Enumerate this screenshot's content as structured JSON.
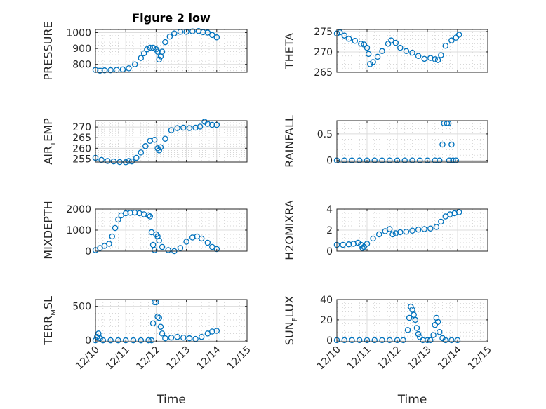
{
  "chart_data": [
    {
      "type": "scatter",
      "title": "Figure 2 low",
      "ylabel": "PRESSURE",
      "xlim": [
        0,
        5
      ],
      "ylim": [
        750,
        1020
      ],
      "yticks": [
        800,
        900,
        1000
      ],
      "x_tick_labels": [
        "12/10",
        "12/11",
        "12/12",
        "12/13",
        "12/14",
        "12/15"
      ],
      "grid": true,
      "show_x_tick_labels": false,
      "series": [
        {
          "color": "#0072BD",
          "points": [
            [
              0.0,
              765
            ],
            [
              0.15,
              760
            ],
            [
              0.3,
              762
            ],
            [
              0.5,
              763
            ],
            [
              0.7,
              765
            ],
            [
              0.9,
              768
            ],
            [
              1.1,
              775
            ],
            [
              1.3,
              800
            ],
            [
              1.5,
              840
            ],
            [
              1.6,
              870
            ],
            [
              1.7,
              895
            ],
            [
              1.8,
              905
            ],
            [
              1.9,
              905
            ],
            [
              2.0,
              895
            ],
            [
              2.05,
              880
            ],
            [
              2.1,
              830
            ],
            [
              2.15,
              850
            ],
            [
              2.2,
              880
            ],
            [
              2.3,
              940
            ],
            [
              2.45,
              975
            ],
            [
              2.6,
              995
            ],
            [
              2.8,
              1005
            ],
            [
              3.0,
              1005
            ],
            [
              3.2,
              1008
            ],
            [
              3.4,
              1010
            ],
            [
              3.55,
              1003
            ],
            [
              3.7,
              1000
            ],
            [
              3.85,
              985
            ],
            [
              4.0,
              970
            ]
          ]
        }
      ]
    },
    {
      "type": "scatter",
      "ylabel": "THETA",
      "xlim": [
        0,
        5
      ],
      "ylim": [
        265,
        275.5
      ],
      "yticks": [
        265,
        270,
        275
      ],
      "x_tick_labels": [
        "12/10",
        "12/11",
        "12/12",
        "12/13",
        "12/14",
        "12/15"
      ],
      "grid": true,
      "show_x_tick_labels": false,
      "series": [
        {
          "color": "#0072BD",
          "points": [
            [
              0.0,
              274.5
            ],
            [
              0.1,
              274.8
            ],
            [
              0.25,
              274
            ],
            [
              0.4,
              273.2
            ],
            [
              0.6,
              272.7
            ],
            [
              0.8,
              272
            ],
            [
              0.9,
              271.8
            ],
            [
              1.0,
              271
            ],
            [
              1.05,
              269.5
            ],
            [
              1.1,
              267
            ],
            [
              1.2,
              267.5
            ],
            [
              1.35,
              268.8
            ],
            [
              1.5,
              270.2
            ],
            [
              1.7,
              272
            ],
            [
              1.8,
              272.8
            ],
            [
              1.95,
              272.2
            ],
            [
              2.1,
              271
            ],
            [
              2.3,
              270.2
            ],
            [
              2.5,
              269.8
            ],
            [
              2.7,
              269
            ],
            [
              2.9,
              268.3
            ],
            [
              3.1,
              268.5
            ],
            [
              3.25,
              268.2
            ],
            [
              3.35,
              268
            ],
            [
              3.45,
              269.2
            ],
            [
              3.6,
              271.5
            ],
            [
              3.8,
              272.8
            ],
            [
              3.95,
              273.5
            ],
            [
              4.05,
              274.2
            ]
          ]
        }
      ]
    },
    {
      "type": "scatter",
      "ylabel": "AIR_TEMP",
      "ylabel_parts": {
        "base": "AIR",
        "sub": "T",
        "rest": "EMP"
      },
      "xlim": [
        0,
        5
      ],
      "ylim": [
        253.5,
        273
      ],
      "yticks": [
        255,
        260,
        265,
        270
      ],
      "x_tick_labels": [
        "12/10",
        "12/11",
        "12/12",
        "12/13",
        "12/14",
        "12/15"
      ],
      "grid": true,
      "show_x_tick_labels": false,
      "series": [
        {
          "color": "#0072BD",
          "points": [
            [
              0.0,
              255.5
            ],
            [
              0.2,
              254.5
            ],
            [
              0.4,
              254
            ],
            [
              0.6,
              253.8
            ],
            [
              0.8,
              253.5
            ],
            [
              1.0,
              253.4
            ],
            [
              1.1,
              254
            ],
            [
              1.2,
              253.8
            ],
            [
              1.35,
              255.5
            ],
            [
              1.5,
              258
            ],
            [
              1.65,
              261
            ],
            [
              1.8,
              263.5
            ],
            [
              1.95,
              264
            ],
            [
              2.05,
              260
            ],
            [
              2.1,
              259
            ],
            [
              2.15,
              260.5
            ],
            [
              2.3,
              264.5
            ],
            [
              2.5,
              268.5
            ],
            [
              2.7,
              269.5
            ],
            [
              2.9,
              269.7
            ],
            [
              3.1,
              269.5
            ],
            [
              3.3,
              269.7
            ],
            [
              3.45,
              270.2
            ],
            [
              3.6,
              272.5
            ],
            [
              3.7,
              271.5
            ],
            [
              3.85,
              271
            ],
            [
              4.0,
              271
            ]
          ]
        }
      ]
    },
    {
      "type": "scatter",
      "ylabel": "RAINFALL",
      "xlim": [
        0,
        5
      ],
      "ylim": [
        -0.03,
        0.75
      ],
      "yticks": [
        0,
        0.5
      ],
      "x_tick_labels": [
        "12/10",
        "12/11",
        "12/12",
        "12/13",
        "12/14",
        "12/15"
      ],
      "grid": true,
      "show_x_tick_labels": false,
      "series": [
        {
          "color": "#0072BD",
          "points": [
            [
              0.0,
              0
            ],
            [
              0.25,
              0
            ],
            [
              0.5,
              0
            ],
            [
              0.75,
              0
            ],
            [
              1.0,
              0
            ],
            [
              1.25,
              0
            ],
            [
              1.5,
              0
            ],
            [
              1.75,
              0
            ],
            [
              2.0,
              0
            ],
            [
              2.25,
              0
            ],
            [
              2.5,
              0
            ],
            [
              2.75,
              0
            ],
            [
              3.0,
              0
            ],
            [
              3.25,
              0
            ],
            [
              3.4,
              0
            ],
            [
              3.5,
              0.3
            ],
            [
              3.55,
              0.7
            ],
            [
              3.65,
              0.7
            ],
            [
              3.7,
              0.7
            ],
            [
              3.72,
              0
            ],
            [
              3.8,
              0.3
            ],
            [
              3.85,
              0
            ],
            [
              3.95,
              0
            ]
          ]
        }
      ]
    },
    {
      "type": "scatter",
      "ylabel": "MIXDEPTH",
      "xlim": [
        0,
        5
      ],
      "ylim": [
        0,
        2000
      ],
      "yticks": [
        0,
        1000,
        2000
      ],
      "x_tick_labels": [
        "12/10",
        "12/11",
        "12/12",
        "12/13",
        "12/14",
        "12/15"
      ],
      "grid": true,
      "show_x_tick_labels": false,
      "series": [
        {
          "color": "#0072BD",
          "points": [
            [
              0.0,
              50
            ],
            [
              0.15,
              150
            ],
            [
              0.3,
              250
            ],
            [
              0.45,
              350
            ],
            [
              0.55,
              700
            ],
            [
              0.65,
              1100
            ],
            [
              0.75,
              1500
            ],
            [
              0.85,
              1700
            ],
            [
              1.0,
              1800
            ],
            [
              1.15,
              1820
            ],
            [
              1.3,
              1830
            ],
            [
              1.45,
              1800
            ],
            [
              1.6,
              1750
            ],
            [
              1.75,
              1700
            ],
            [
              1.8,
              1650
            ],
            [
              1.85,
              900
            ],
            [
              1.9,
              300
            ],
            [
              1.95,
              50
            ],
            [
              2.0,
              800
            ],
            [
              2.05,
              700
            ],
            [
              2.1,
              500
            ],
            [
              2.2,
              200
            ],
            [
              2.4,
              50
            ],
            [
              2.6,
              0
            ],
            [
              2.8,
              150
            ],
            [
              3.0,
              450
            ],
            [
              3.2,
              650
            ],
            [
              3.35,
              700
            ],
            [
              3.5,
              600
            ],
            [
              3.7,
              400
            ],
            [
              3.85,
              200
            ],
            [
              4.0,
              100
            ]
          ]
        }
      ]
    },
    {
      "type": "scatter",
      "ylabel": "H2OMIXRA",
      "xlim": [
        0,
        5
      ],
      "ylim": [
        0,
        4
      ],
      "yticks": [
        0,
        2,
        4
      ],
      "x_tick_labels": [
        "12/10",
        "12/11",
        "12/12",
        "12/13",
        "12/14",
        "12/15"
      ],
      "grid": true,
      "show_x_tick_labels": false,
      "series": [
        {
          "color": "#0072BD",
          "points": [
            [
              0.0,
              0.6
            ],
            [
              0.2,
              0.6
            ],
            [
              0.4,
              0.65
            ],
            [
              0.55,
              0.7
            ],
            [
              0.7,
              0.8
            ],
            [
              0.8,
              0.6
            ],
            [
              0.85,
              0.3
            ],
            [
              0.9,
              0.4
            ],
            [
              1.0,
              0.7
            ],
            [
              1.2,
              1.2
            ],
            [
              1.4,
              1.6
            ],
            [
              1.6,
              1.9
            ],
            [
              1.75,
              2.1
            ],
            [
              1.85,
              1.6
            ],
            [
              1.95,
              1.7
            ],
            [
              2.1,
              1.8
            ],
            [
              2.3,
              1.85
            ],
            [
              2.5,
              1.95
            ],
            [
              2.7,
              2.05
            ],
            [
              2.9,
              2.1
            ],
            [
              3.1,
              2.15
            ],
            [
              3.3,
              2.3
            ],
            [
              3.45,
              2.8
            ],
            [
              3.6,
              3.3
            ],
            [
              3.75,
              3.5
            ],
            [
              3.9,
              3.6
            ],
            [
              4.05,
              3.7
            ]
          ]
        }
      ]
    },
    {
      "type": "scatter",
      "ylabel": "TERR_MSL",
      "ylabel_parts": {
        "base": "TERR",
        "sub": "M",
        "rest": "SL"
      },
      "xlim": [
        0,
        5
      ],
      "ylim": [
        -20,
        600
      ],
      "yticks": [
        0,
        500
      ],
      "x_tick_labels": [
        "12/10",
        "12/11",
        "12/12",
        "12/13",
        "12/14",
        "12/15"
      ],
      "grid": true,
      "show_x_tick_labels": true,
      "series": [
        {
          "color": "#0072BD",
          "points": [
            [
              0.0,
              0
            ],
            [
              0.05,
              50
            ],
            [
              0.1,
              100
            ],
            [
              0.15,
              30
            ],
            [
              0.25,
              0
            ],
            [
              0.5,
              0
            ],
            [
              0.75,
              0
            ],
            [
              1.0,
              0
            ],
            [
              1.25,
              0
            ],
            [
              1.5,
              0
            ],
            [
              1.75,
              0
            ],
            [
              1.85,
              0
            ],
            [
              1.9,
              250
            ],
            [
              1.95,
              560
            ],
            [
              2.0,
              560
            ],
            [
              2.05,
              350
            ],
            [
              2.1,
              330
            ],
            [
              2.15,
              200
            ],
            [
              2.2,
              100
            ],
            [
              2.3,
              30
            ],
            [
              2.5,
              40
            ],
            [
              2.7,
              50
            ],
            [
              2.9,
              40
            ],
            [
              3.1,
              30
            ],
            [
              3.3,
              20
            ],
            [
              3.5,
              50
            ],
            [
              3.7,
              100
            ],
            [
              3.85,
              130
            ],
            [
              4.0,
              140
            ]
          ]
        }
      ]
    },
    {
      "type": "scatter",
      "ylabel": "SUN_FLUX",
      "ylabel_parts": {
        "base": "SUN",
        "sub": "F",
        "rest": "LUX"
      },
      "xlim": [
        0,
        5
      ],
      "ylim": [
        -1.5,
        40
      ],
      "yticks": [
        0,
        20,
        40
      ],
      "x_tick_labels": [
        "12/10",
        "12/11",
        "12/12",
        "12/13",
        "12/14",
        "12/15"
      ],
      "grid": true,
      "show_x_tick_labels": true,
      "series": [
        {
          "color": "#0072BD",
          "points": [
            [
              0.0,
              0
            ],
            [
              0.25,
              0
            ],
            [
              0.5,
              0
            ],
            [
              0.75,
              0
            ],
            [
              1.0,
              0
            ],
            [
              1.25,
              0
            ],
            [
              1.5,
              0
            ],
            [
              1.75,
              0
            ],
            [
              2.0,
              0
            ],
            [
              2.2,
              0
            ],
            [
              2.35,
              10
            ],
            [
              2.4,
              22
            ],
            [
              2.45,
              33
            ],
            [
              2.5,
              30
            ],
            [
              2.55,
              25
            ],
            [
              2.6,
              20
            ],
            [
              2.65,
              12
            ],
            [
              2.7,
              6
            ],
            [
              2.75,
              3
            ],
            [
              2.85,
              0
            ],
            [
              3.0,
              0
            ],
            [
              3.1,
              0
            ],
            [
              3.2,
              5
            ],
            [
              3.25,
              15
            ],
            [
              3.3,
              22
            ],
            [
              3.35,
              18
            ],
            [
              3.4,
              8
            ],
            [
              3.5,
              2
            ],
            [
              3.6,
              0
            ],
            [
              3.8,
              0
            ],
            [
              4.0,
              0
            ]
          ]
        }
      ]
    }
  ],
  "x_axis_label": "Time"
}
